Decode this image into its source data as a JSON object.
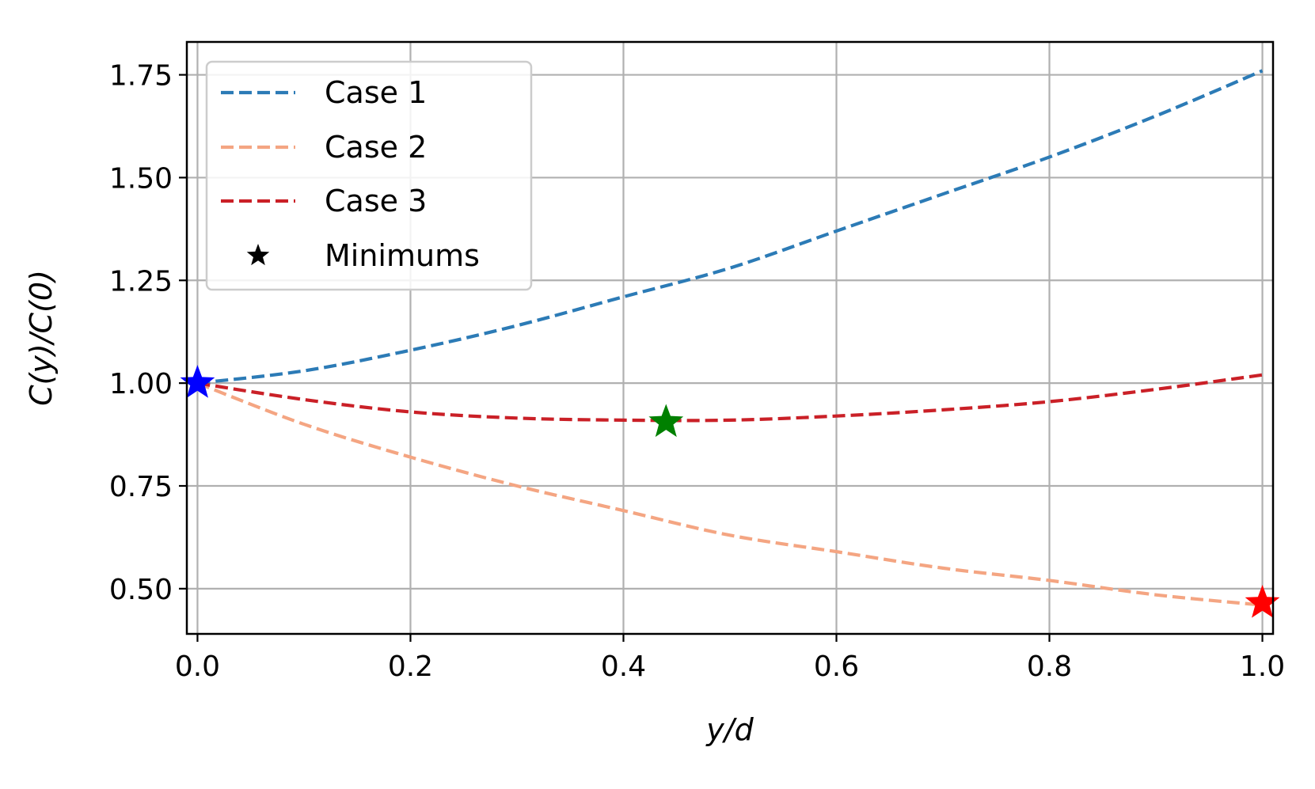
{
  "chart_data": {
    "type": "line",
    "xlabel": "y/d",
    "ylabel": "C(y)/C(0)",
    "xlim": [
      -0.01,
      1.01
    ],
    "ylim": [
      0.39,
      1.83
    ],
    "x_ticks": [
      "0.0",
      "0.2",
      "0.4",
      "0.6",
      "0.8",
      "1.0"
    ],
    "y_ticks": [
      "0.50",
      "0.75",
      "1.00",
      "1.25",
      "1.50",
      "1.75"
    ],
    "grid": true,
    "legend_position": "top-left",
    "x": [
      0.0,
      0.1,
      0.2,
      0.3,
      0.4,
      0.5,
      0.6,
      0.7,
      0.8,
      0.9,
      1.0
    ],
    "series": [
      {
        "name": "Case 1",
        "color": "#2c7bb6",
        "style": "dashed",
        "values": [
          1.0,
          1.03,
          1.08,
          1.14,
          1.21,
          1.28,
          1.37,
          1.46,
          1.55,
          1.65,
          1.76
        ]
      },
      {
        "name": "Case 2",
        "color": "#f4a582",
        "style": "dashed",
        "values": [
          1.0,
          0.9,
          0.82,
          0.75,
          0.69,
          0.63,
          0.59,
          0.55,
          0.52,
          0.485,
          0.46
        ]
      },
      {
        "name": "Case 3",
        "color": "#ca2027",
        "style": "dashed",
        "values": [
          1.0,
          0.96,
          0.93,
          0.915,
          0.91,
          0.91,
          0.92,
          0.935,
          0.955,
          0.985,
          1.02
        ]
      }
    ],
    "minimums": {
      "name": "Minimums",
      "legend_color": "#000000",
      "points": [
        {
          "x": 0.0,
          "y": 1.0,
          "color": "#0000ff"
        },
        {
          "x": 0.44,
          "y": 0.905,
          "color": "#008000"
        },
        {
          "x": 1.0,
          "y": 0.465,
          "color": "#ff0000"
        }
      ]
    }
  }
}
